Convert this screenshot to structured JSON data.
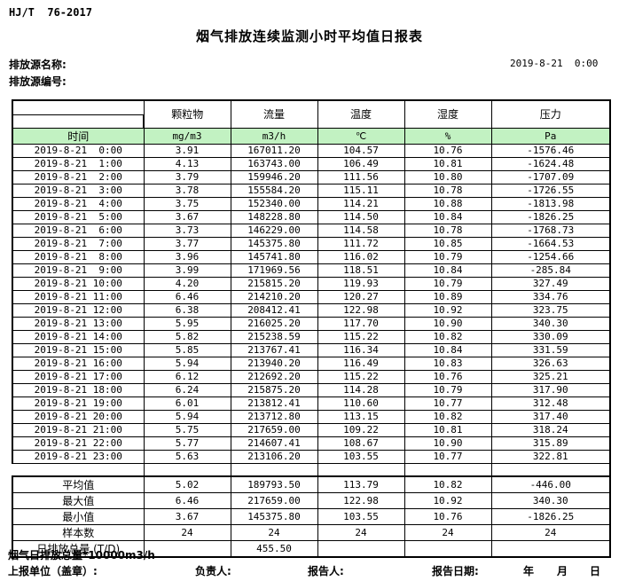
{
  "header": {
    "standard": "HJ/T  76-2017",
    "title": "烟气排放连续监测小时平均值日报表",
    "source_name_label": "排放源名称:",
    "source_code_label": "排放源编号:",
    "datetime": "2019-8-21  0:00"
  },
  "colors": {
    "unit_row_bg": "#c2f2c2",
    "border": "#000000"
  },
  "table": {
    "time_header": "时间",
    "columns": [
      {
        "name": "颗粒物",
        "unit": "mg/m3"
      },
      {
        "name": "流量",
        "unit": "m3/h"
      },
      {
        "name": "温度",
        "unit": "℃"
      },
      {
        "name": "湿度",
        "unit": "%"
      },
      {
        "name": "压力",
        "unit": "Pa"
      }
    ],
    "rows": [
      {
        "time": "2019-8-21  0:00",
        "values": [
          "3.91",
          "167011.20",
          "104.57",
          "10.76",
          "-1576.46"
        ]
      },
      {
        "time": "2019-8-21  1:00",
        "values": [
          "4.13",
          "163743.00",
          "106.49",
          "10.81",
          "-1624.48"
        ]
      },
      {
        "time": "2019-8-21  2:00",
        "values": [
          "3.79",
          "159946.20",
          "111.56",
          "10.80",
          "-1707.09"
        ]
      },
      {
        "time": "2019-8-21  3:00",
        "values": [
          "3.78",
          "155584.20",
          "115.11",
          "10.78",
          "-1726.55"
        ]
      },
      {
        "time": "2019-8-21  4:00",
        "values": [
          "3.75",
          "152340.00",
          "114.21",
          "10.88",
          "-1813.98"
        ]
      },
      {
        "time": "2019-8-21  5:00",
        "values": [
          "3.67",
          "148228.80",
          "114.50",
          "10.84",
          "-1826.25"
        ]
      },
      {
        "time": "2019-8-21  6:00",
        "values": [
          "3.73",
          "146229.00",
          "114.58",
          "10.78",
          "-1768.73"
        ]
      },
      {
        "time": "2019-8-21  7:00",
        "values": [
          "3.77",
          "145375.80",
          "111.72",
          "10.85",
          "-1664.53"
        ]
      },
      {
        "time": "2019-8-21  8:00",
        "values": [
          "3.96",
          "145741.80",
          "116.02",
          "10.79",
          "-1254.66"
        ]
      },
      {
        "time": "2019-8-21  9:00",
        "values": [
          "3.99",
          "171969.56",
          "118.51",
          "10.84",
          "-285.84"
        ]
      },
      {
        "time": "2019-8-21 10:00",
        "values": [
          "4.20",
          "215815.20",
          "119.93",
          "10.79",
          "327.49"
        ]
      },
      {
        "time": "2019-8-21 11:00",
        "values": [
          "6.46",
          "214210.20",
          "120.27",
          "10.89",
          "334.76"
        ]
      },
      {
        "time": "2019-8-21 12:00",
        "values": [
          "6.38",
          "208412.41",
          "122.98",
          "10.92",
          "323.75"
        ]
      },
      {
        "time": "2019-8-21 13:00",
        "values": [
          "5.95",
          "216025.20",
          "117.70",
          "10.90",
          "340.30"
        ]
      },
      {
        "time": "2019-8-21 14:00",
        "values": [
          "5.82",
          "215238.59",
          "115.22",
          "10.82",
          "330.09"
        ]
      },
      {
        "time": "2019-8-21 15:00",
        "values": [
          "5.85",
          "213767.41",
          "116.34",
          "10.84",
          "331.59"
        ]
      },
      {
        "time": "2019-8-21 16:00",
        "values": [
          "5.94",
          "213940.20",
          "116.49",
          "10.83",
          "326.63"
        ]
      },
      {
        "time": "2019-8-21 17:00",
        "values": [
          "6.12",
          "212692.20",
          "115.22",
          "10.76",
          "325.21"
        ]
      },
      {
        "time": "2019-8-21 18:00",
        "values": [
          "6.24",
          "215875.20",
          "114.28",
          "10.79",
          "317.90"
        ]
      },
      {
        "time": "2019-8-21 19:00",
        "values": [
          "6.01",
          "213812.41",
          "110.60",
          "10.77",
          "312.48"
        ]
      },
      {
        "time": "2019-8-21 20:00",
        "values": [
          "5.94",
          "213712.80",
          "113.15",
          "10.82",
          "317.40"
        ]
      },
      {
        "time": "2019-8-21 21:00",
        "values": [
          "5.75",
          "217659.00",
          "109.22",
          "10.81",
          "318.24"
        ]
      },
      {
        "time": "2019-8-21 22:00",
        "values": [
          "5.77",
          "214607.41",
          "108.67",
          "10.90",
          "315.89"
        ]
      },
      {
        "time": "2019-8-21 23:00",
        "values": [
          "5.63",
          "213106.20",
          "103.55",
          "10.77",
          "322.81"
        ]
      }
    ],
    "summary": [
      {
        "label": "平均值",
        "values": [
          "5.02",
          "189793.50",
          "113.79",
          "10.82",
          "-446.00"
        ]
      },
      {
        "label": "最大值",
        "values": [
          "6.46",
          "217659.00",
          "122.98",
          "10.92",
          "340.30"
        ]
      },
      {
        "label": "最小值",
        "values": [
          "3.67",
          "145375.80",
          "103.55",
          "10.76",
          "-1826.25"
        ]
      },
      {
        "label": "样本数",
        "values": [
          "24",
          "24",
          "24",
          "24",
          "24"
        ]
      },
      {
        "label": "日排放总量 (T/D)",
        "values": [
          "",
          "455.50",
          "",
          "",
          ""
        ]
      }
    ]
  },
  "footer": {
    "note": "烟气日排放总量*10000m3/h",
    "unit_label": "上报单位（盖章）:",
    "responsible_label": "负责人:",
    "reporter_label": "报告人:",
    "report_date_label": "报告日期:",
    "year": "年",
    "month": "月",
    "day": "日"
  }
}
